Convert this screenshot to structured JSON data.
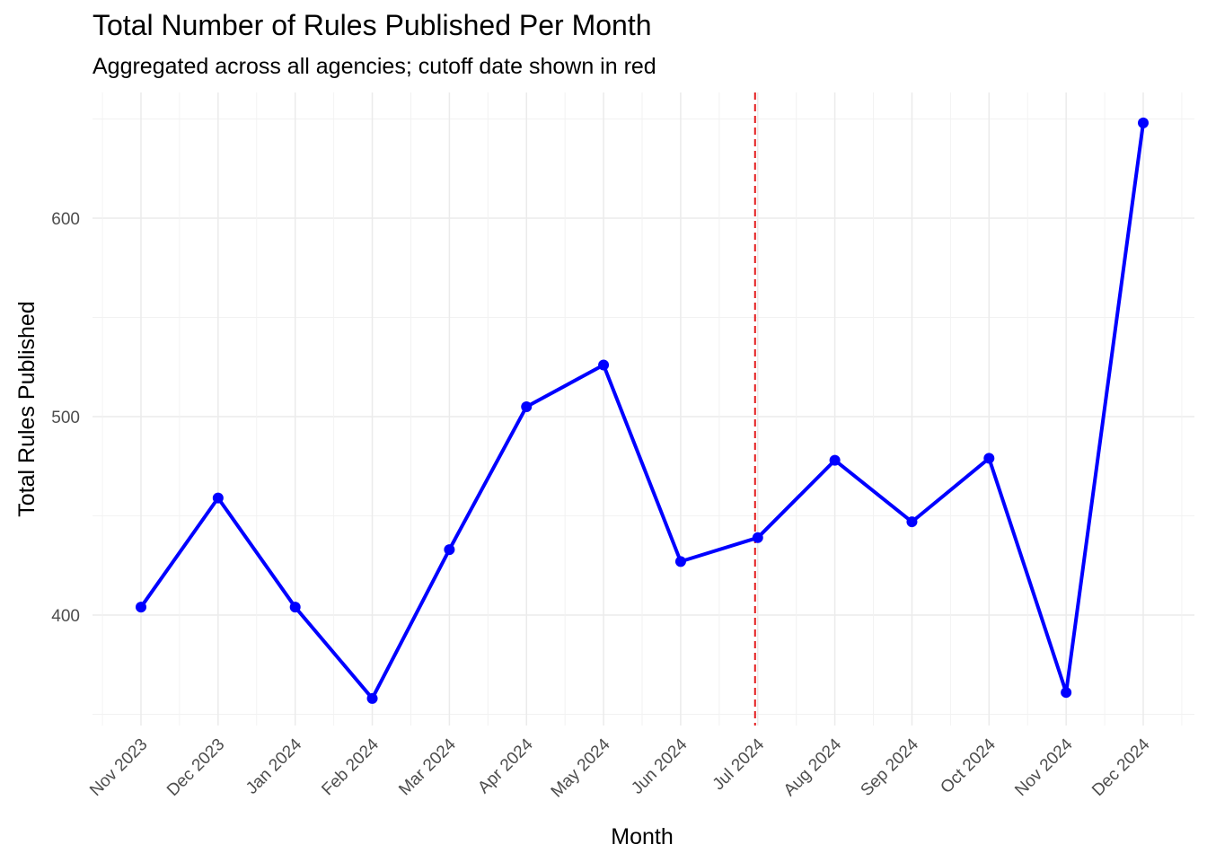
{
  "chart_data": {
    "type": "line",
    "title": "Total Number of Rules Published Per Month",
    "subtitle": "Aggregated across all agencies; cutoff date shown in red",
    "xlabel": "Month",
    "ylabel": "Total Rules Published",
    "categories": [
      "Nov 2023",
      "Dec 2023",
      "Jan 2024",
      "Feb 2024",
      "Mar 2024",
      "Apr 2024",
      "May 2024",
      "Jun 2024",
      "Jul 2024",
      "Aug 2024",
      "Sep 2024",
      "Oct 2024",
      "Nov 2024",
      "Dec 2024"
    ],
    "series": [
      {
        "values": [
          404,
          459,
          404,
          358,
          433,
          505,
          526,
          427,
          439,
          478,
          447,
          479,
          361,
          648
        ],
        "color": "#0000ff"
      }
    ],
    "y_ticks": [
      400,
      500,
      600
    ],
    "ylim": [
      340,
      656
    ],
    "grid": true,
    "cutoff": {
      "date": "2024-07-01",
      "color": "#e31a1c",
      "style": "dashed"
    }
  }
}
